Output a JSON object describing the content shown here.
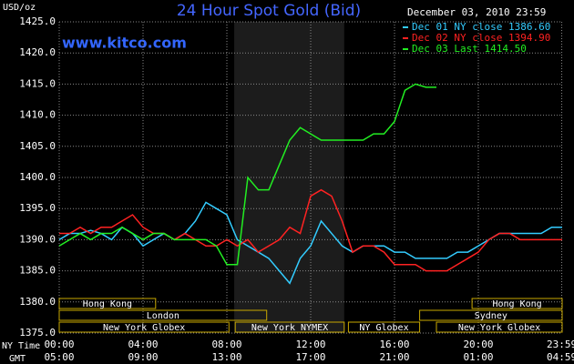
{
  "chart_data": {
    "type": "line",
    "title": "24 Hour Spot Gold (Bid)",
    "subtitle": "December 03, 2010 23:59",
    "watermark": "www.kitco.com",
    "y_label": "USD/oz",
    "x_label": "NY Time",
    "x2_label": "GMT",
    "xlim": [
      0,
      24
    ],
    "ylim": [
      1375,
      1425
    ],
    "grid": true,
    "legend": "top-right",
    "xticks": [
      {
        "value": 0,
        "label": "00:00"
      },
      {
        "value": 4,
        "label": "04:00"
      },
      {
        "value": 8,
        "label": "08:00"
      },
      {
        "value": 12,
        "label": "12:00"
      },
      {
        "value": 16,
        "label": "16:00"
      },
      {
        "value": 20,
        "label": "20:00"
      },
      {
        "value": 23.98,
        "label": "23:59"
      }
    ],
    "x2tick_labels": [
      "05:00",
      "09:00",
      "13:00",
      "17:00",
      "21:00",
      "01:00",
      "04:59"
    ],
    "yticks": [
      {
        "value": 1375,
        "label": "1375.0"
      },
      {
        "value": 1380,
        "label": "1380.0"
      },
      {
        "value": 1385,
        "label": "1385.0"
      },
      {
        "value": 1390,
        "label": "1390.0"
      },
      {
        "value": 1395,
        "label": "1395.0"
      },
      {
        "value": 1400,
        "label": "1400.0"
      },
      {
        "value": 1405,
        "label": "1405.0"
      },
      {
        "value": 1410,
        "label": "1410.0"
      },
      {
        "value": 1415,
        "label": "1415.0"
      },
      {
        "value": 1420,
        "label": "1420.0"
      },
      {
        "value": 1425,
        "label": "1425.0"
      }
    ],
    "shaded_span": [
      8.35,
      13.6
    ],
    "session_rows": [
      [
        {
          "name": "Hong Kong",
          "start": 0,
          "end": 4.6
        },
        {
          "name": "Hong Kong",
          "start": 19.7,
          "end": 24
        }
      ],
      [
        {
          "name": "London",
          "start": 0,
          "end": 9.9
        },
        {
          "name": "Sydney",
          "start": 17.2,
          "end": 24
        }
      ],
      [
        {
          "name": "New York Globex",
          "start": 0,
          "end": 8.1
        },
        {
          "name": "New York NYMEX",
          "start": 8.4,
          "end": 13.6
        },
        {
          "name": "NY Globex",
          "start": 13.8,
          "end": 17.2
        },
        {
          "name": "New York Globex",
          "start": 18,
          "end": 24
        }
      ]
    ],
    "x": [
      0,
      0.5,
      1,
      1.5,
      2,
      2.5,
      3,
      3.5,
      4,
      4.5,
      5,
      5.5,
      6,
      6.5,
      7,
      7.5,
      8,
      8.5,
      9,
      9.5,
      10,
      10.5,
      11,
      11.5,
      12,
      12.5,
      13,
      13.5,
      14,
      14.5,
      15,
      15.5,
      16,
      16.5,
      17,
      17.5,
      18,
      18.5,
      19,
      19.5,
      20,
      20.5,
      21,
      21.5,
      22,
      22.5,
      23,
      23.5,
      24
    ],
    "series": [
      {
        "name": "Dec 01 NY close 1386.60",
        "color": "#33ccff",
        "values": [
          1390,
          1391,
          1391,
          1391.5,
          1391,
          1390,
          1392,
          1391,
          1389,
          1390,
          1391,
          1390,
          1391,
          1393,
          1396,
          1395,
          1394,
          1390,
          1389,
          1388,
          1387,
          1385,
          1383,
          1387,
          1389,
          1393,
          1391,
          1389,
          1388,
          1389,
          1389,
          1389,
          1388,
          1388,
          1387,
          1387,
          1387,
          1387,
          1388,
          1388,
          1389,
          1390,
          1391,
          1391,
          1391,
          1391,
          1391,
          1392,
          1392
        ]
      },
      {
        "name": "Dec 02 NY close 1394.90",
        "color": "#ff2222",
        "values": [
          1391,
          1391,
          1392,
          1391,
          1392,
          1392,
          1393,
          1394,
          1392,
          1391,
          1391,
          1390,
          1391,
          1390,
          1389,
          1389,
          1390,
          1389,
          1390,
          1388,
          1389,
          1390,
          1392,
          1391,
          1397,
          1398,
          1397,
          1393,
          1388,
          1389,
          1389,
          1388,
          1386,
          1386,
          1386,
          1385,
          1385,
          1385,
          1386,
          1387,
          1388,
          1390,
          1391,
          1391,
          1390,
          1390,
          1390,
          1390,
          1390
        ]
      },
      {
        "name": "Dec 03 Last 1414.50",
        "color": "#22ee22",
        "values": [
          1389,
          1390,
          1391,
          1390,
          1391,
          1391,
          1392,
          1391,
          1390,
          1391,
          1391,
          1390,
          1390,
          1390,
          1390,
          1389,
          1386,
          1386,
          1400,
          1398,
          1398,
          1402,
          1406,
          1408,
          1407,
          1406,
          1406,
          1406,
          1406,
          1406,
          1407,
          1407,
          1409,
          1414,
          1415,
          1414.5,
          1414.5,
          null,
          null,
          null,
          null,
          null,
          null,
          null,
          null,
          null,
          null,
          null,
          null
        ]
      }
    ]
  }
}
